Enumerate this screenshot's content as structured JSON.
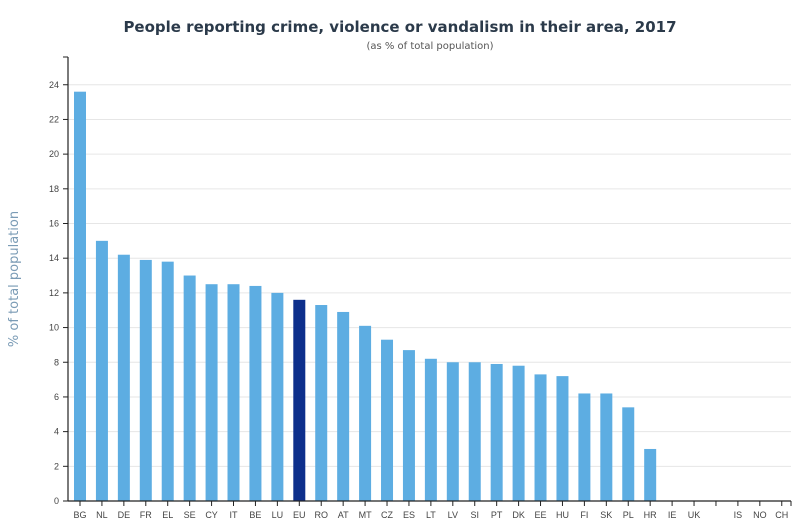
{
  "chart_data": {
    "type": "bar",
    "title": "People reporting crime, violence or vandalism in their area, 2017",
    "subtitle": "(as % of total population)",
    "xlabel": "",
    "ylabel": "% of total population",
    "ylim": [
      0,
      25.6
    ],
    "yticks": [
      0,
      2,
      4,
      6,
      8,
      10,
      12,
      14,
      16,
      18,
      20,
      22,
      24
    ],
    "grid": true,
    "legend": "none",
    "categories": [
      "BG",
      "NL",
      "DE",
      "FR",
      "EL",
      "SE",
      "CY",
      "IT",
      "BE",
      "LU",
      "EU",
      "RO",
      "AT",
      "MT",
      "CZ",
      "ES",
      "LT",
      "LV",
      "SI",
      "PT",
      "DK",
      "EE",
      "HU",
      "FI",
      "SK",
      "PL",
      "HR",
      "IE",
      "UK",
      "",
      "IS",
      "NO",
      "CH"
    ],
    "values": [
      23.6,
      15.0,
      14.2,
      13.9,
      13.8,
      13.0,
      12.5,
      12.5,
      12.4,
      12.0,
      11.6,
      11.3,
      10.9,
      10.1,
      9.3,
      8.7,
      8.2,
      8.0,
      8.0,
      7.9,
      7.8,
      7.3,
      7.2,
      6.2,
      6.2,
      5.4,
      3.0,
      null,
      null,
      null,
      null,
      null,
      null
    ],
    "highlight": "EU",
    "colors": {
      "bar": "#5dade2",
      "highlight": "#0d2f8c"
    }
  }
}
